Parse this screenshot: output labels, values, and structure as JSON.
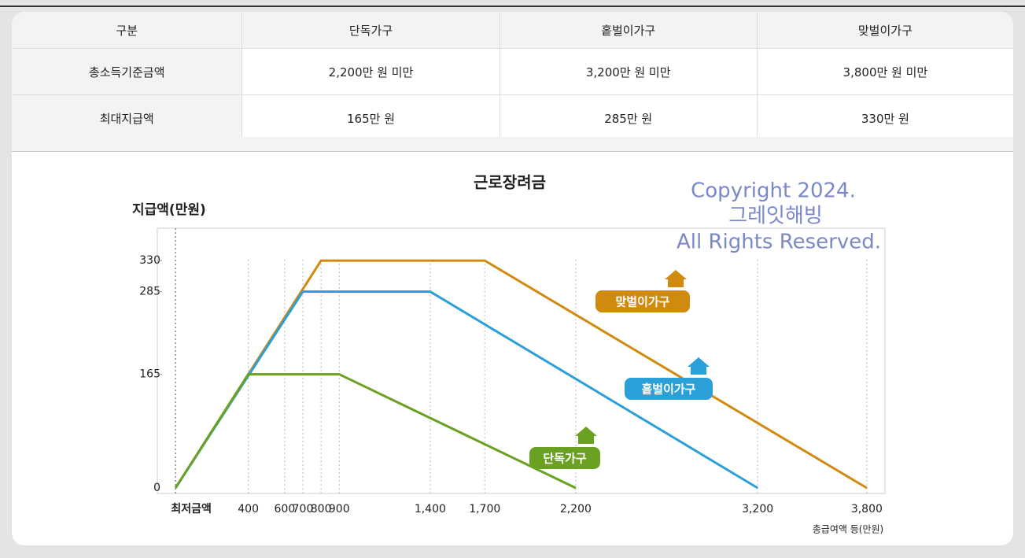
{
  "table": {
    "header": [
      "구분",
      "단독가구",
      "홑벌이가구",
      "맞벌이가구"
    ],
    "rows": [
      [
        "총소득기준금액",
        "2,200만 원 미만",
        "3,200만 원 미만",
        "3,800만 원 미만"
      ],
      [
        "최대지급액",
        "165만 원",
        "285만 원",
        "330만 원"
      ]
    ]
  },
  "chart_data": {
    "type": "line",
    "title": "근로장려금",
    "y_label": "지급액(만원)",
    "x_label": "총급여액 등(만원)",
    "watermark": [
      "Copyright 2024.",
      "그레잇해빙",
      "All Rights Reserved."
    ],
    "xlim": [
      -100,
      3900
    ],
    "ylim": [
      -8,
      377
    ],
    "xticks": [
      {
        "value": 0,
        "label": "최저금액"
      },
      400,
      600,
      700,
      800,
      900,
      {
        "value": 1400,
        "label": "1,400"
      },
      {
        "value": 1700,
        "label": "1,700"
      },
      {
        "value": 2200,
        "label": "2,200"
      },
      {
        "value": 3200,
        "label": "3,200"
      },
      {
        "value": 3800,
        "label": "3,800"
      }
    ],
    "yticks": [
      0,
      165,
      285,
      330
    ],
    "series": [
      {
        "name": "맞벌이가구",
        "color": "#d08a0d",
        "x": [
          0,
          800,
          1700,
          3800
        ],
        "values": [
          0,
          330,
          330,
          0
        ]
      },
      {
        "name": "홑벌이가구",
        "color": "#2b9fd8",
        "x": [
          0,
          700,
          1400,
          3200
        ],
        "values": [
          0,
          285,
          285,
          0
        ]
      },
      {
        "name": "단독가구",
        "color": "#6aa121",
        "x": [
          0,
          400,
          900,
          2200
        ],
        "values": [
          0,
          165,
          165,
          0
        ]
      }
    ]
  }
}
